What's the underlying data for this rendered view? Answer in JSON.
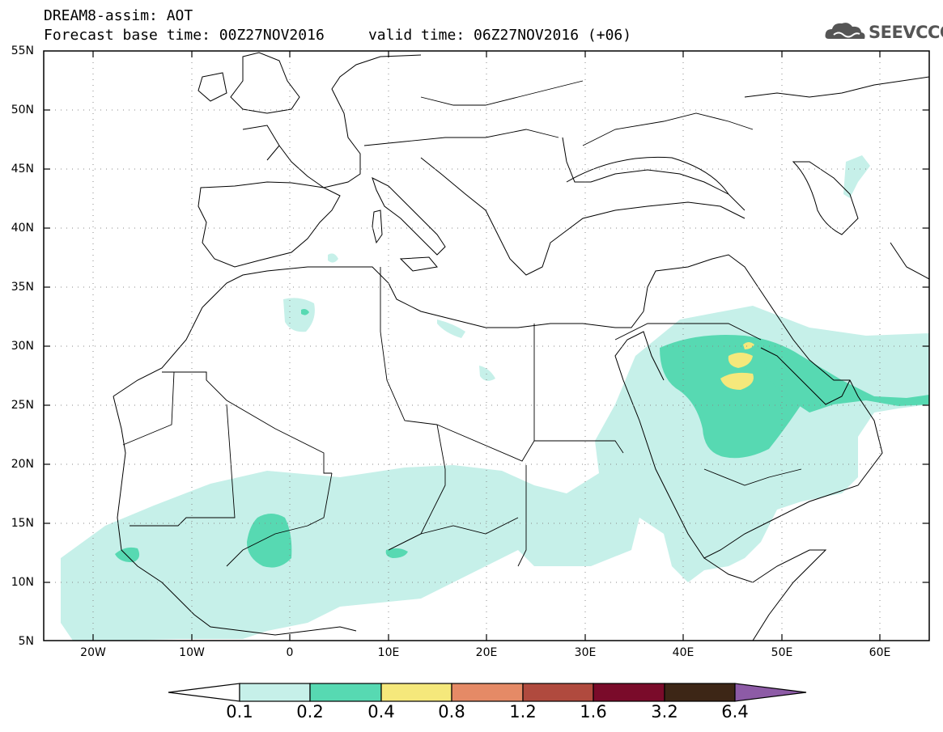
{
  "header": {
    "line1": "DREAM8-assim: AOT",
    "line2": "Forecast base time: 00Z27NOV2016     valid time: 06Z27NOV2016 (+06)"
  },
  "logo": {
    "text": "SEEVCCC",
    "icon": "cloud-icon"
  },
  "axes": {
    "lat_labels": [
      "55N",
      "50N",
      "45N",
      "40N",
      "35N",
      "30N",
      "25N",
      "20N",
      "15N",
      "10N",
      "5N"
    ],
    "lon_labels": [
      "20W",
      "10W",
      "0",
      "10E",
      "20E",
      "30E",
      "40E",
      "50E",
      "60E"
    ]
  },
  "colorbar": {
    "labels": [
      "0.1",
      "0.2",
      "0.4",
      "0.8",
      "1.2",
      "1.6",
      "3.2",
      "6.4"
    ],
    "colors": [
      "#ffffff",
      "#c6f0e9",
      "#57d9b2",
      "#f5e87b",
      "#e58a66",
      "#b04a3e",
      "#7a0b2a",
      "#3d2616",
      "#8d5ba6"
    ]
  },
  "colors": {
    "low": "#c6f0e9",
    "mid": "#57d9b2",
    "high": "#f5e87b"
  }
}
